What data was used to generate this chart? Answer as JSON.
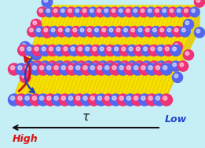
{
  "bg_color": "#c5eef5",
  "yellow_core_color": "#f7df00",
  "yellow_core_color2": "#f0c800",
  "blue_head_color": "#5566ee",
  "pink_head_color": "#ee3377",
  "arrow_red_color": "#cc1111",
  "arrow_blue_color": "#2244bb",
  "text_high_color": "#dd1111",
  "text_low_color": "#2244cc",
  "text_tau_color": "#111111",
  "arrow_axis_color": "#111111"
}
